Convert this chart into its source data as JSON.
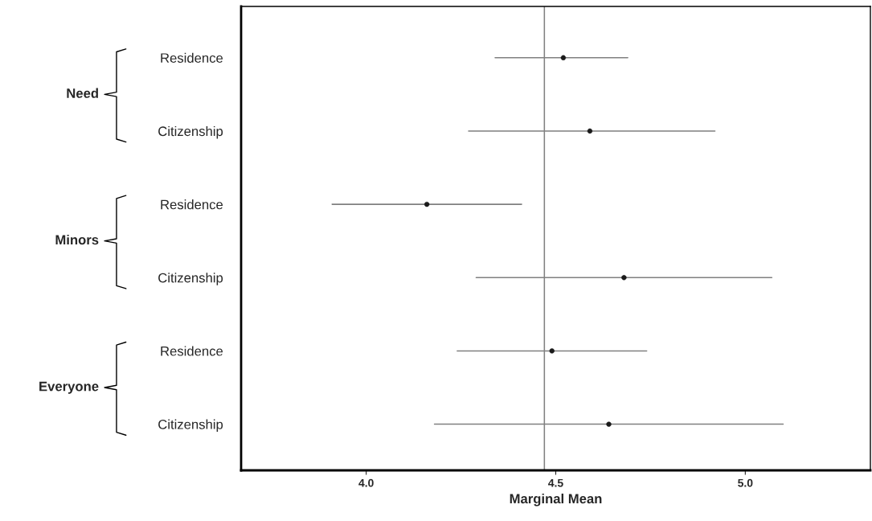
{
  "chart_data": {
    "type": "scatter",
    "orientation": "horizontal",
    "xlabel": "Marginal Mean",
    "categories": [
      "Residence",
      "Citizenship",
      "Residence",
      "Citizenship",
      "Residence",
      "Citizenship"
    ],
    "values": [
      4.52,
      4.59,
      4.16,
      4.68,
      4.49,
      4.64
    ],
    "errors": [
      [
        4.34,
        4.69
      ],
      [
        4.27,
        4.92
      ],
      [
        3.91,
        4.41
      ],
      [
        4.29,
        5.07
      ],
      [
        4.24,
        4.74
      ],
      [
        4.18,
        5.1
      ]
    ],
    "color": "#1a1a1a",
    "marker": "circle",
    "grid": false,
    "legend": false,
    "ref_lines": [
      {
        "axis": "x",
        "value": 4.47,
        "color": "#808080"
      }
    ],
    "annotations": [
      "Need",
      "Minors",
      "Everyone"
    ],
    "xlim": [
      3.67,
      5.33
    ],
    "xticks": [
      {
        "value": 4,
        "label": "4.0"
      },
      {
        "value": 4.5,
        "label": "4.5"
      },
      {
        "value": 5,
        "label": "5.0"
      }
    ]
  }
}
